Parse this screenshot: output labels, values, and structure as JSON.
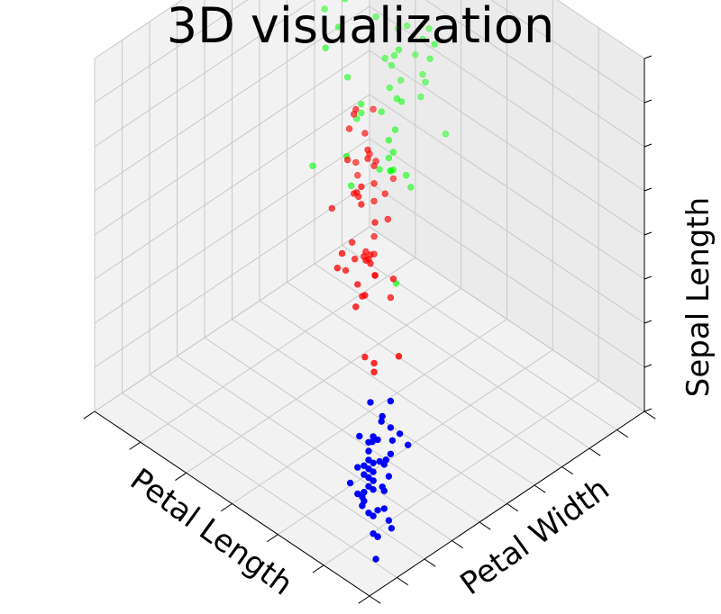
{
  "chart_data": {
    "type": "scatter",
    "title": "3D visualization",
    "xlabel": "Petal Length",
    "ylabel": "Petal Width",
    "zlabel": "Sepal Length",
    "grid": true,
    "xlim": [
      1,
      7
    ],
    "ylim": [
      0,
      2.5
    ],
    "zlim": [
      4,
      8
    ],
    "series": [
      {
        "color": "#0000ff",
        "points": [
          [
            1.4,
            0.2,
            5.1
          ],
          [
            1.4,
            0.2,
            4.9
          ],
          [
            1.3,
            0.2,
            4.7
          ],
          [
            1.5,
            0.2,
            4.6
          ],
          [
            1.4,
            0.2,
            5.0
          ],
          [
            1.7,
            0.4,
            5.4
          ],
          [
            1.4,
            0.3,
            4.6
          ],
          [
            1.5,
            0.2,
            5.0
          ],
          [
            1.4,
            0.2,
            4.4
          ],
          [
            1.5,
            0.1,
            4.9
          ],
          [
            1.5,
            0.2,
            5.4
          ],
          [
            1.6,
            0.2,
            4.8
          ],
          [
            1.4,
            0.1,
            4.8
          ],
          [
            1.1,
            0.1,
            4.3
          ],
          [
            1.2,
            0.2,
            5.8
          ],
          [
            1.5,
            0.4,
            5.7
          ],
          [
            1.3,
            0.4,
            5.4
          ],
          [
            1.4,
            0.3,
            5.1
          ],
          [
            1.7,
            0.3,
            5.7
          ],
          [
            1.5,
            0.3,
            5.1
          ],
          [
            1.7,
            0.2,
            5.4
          ],
          [
            1.5,
            0.4,
            5.1
          ],
          [
            1.0,
            0.2,
            4.6
          ],
          [
            1.7,
            0.5,
            5.1
          ],
          [
            1.9,
            0.2,
            4.8
          ],
          [
            1.6,
            0.2,
            5.0
          ],
          [
            1.6,
            0.4,
            5.0
          ],
          [
            1.5,
            0.2,
            5.2
          ],
          [
            1.4,
            0.2,
            5.2
          ],
          [
            1.6,
            0.2,
            4.7
          ],
          [
            1.6,
            0.2,
            4.8
          ],
          [
            1.5,
            0.4,
            5.4
          ],
          [
            1.5,
            0.1,
            5.2
          ],
          [
            1.4,
            0.2,
            5.5
          ],
          [
            1.5,
            0.2,
            4.9
          ],
          [
            1.2,
            0.2,
            5.0
          ],
          [
            1.3,
            0.2,
            5.5
          ],
          [
            1.4,
            0.1,
            4.9
          ],
          [
            1.3,
            0.2,
            4.4
          ],
          [
            1.5,
            0.2,
            5.1
          ],
          [
            1.3,
            0.3,
            5.0
          ],
          [
            1.3,
            0.3,
            4.5
          ],
          [
            1.3,
            0.2,
            4.4
          ],
          [
            1.6,
            0.6,
            5.0
          ],
          [
            1.9,
            0.4,
            5.1
          ],
          [
            1.4,
            0.3,
            4.8
          ],
          [
            1.6,
            0.2,
            5.1
          ],
          [
            1.4,
            0.2,
            4.6
          ],
          [
            1.5,
            0.2,
            5.3
          ],
          [
            1.4,
            0.2,
            5.0
          ]
        ]
      },
      {
        "color": "#ff0000",
        "points": [
          [
            4.7,
            1.4,
            7.0
          ],
          [
            4.5,
            1.5,
            6.4
          ],
          [
            4.9,
            1.5,
            6.9
          ],
          [
            4.0,
            1.3,
            5.5
          ],
          [
            4.6,
            1.5,
            6.5
          ],
          [
            4.5,
            1.3,
            5.7
          ],
          [
            4.7,
            1.6,
            6.3
          ],
          [
            3.3,
            1.0,
            4.9
          ],
          [
            4.6,
            1.3,
            6.6
          ],
          [
            3.9,
            1.4,
            5.2
          ],
          [
            3.5,
            1.0,
            5.0
          ],
          [
            4.2,
            1.5,
            5.9
          ],
          [
            4.0,
            1.0,
            6.0
          ],
          [
            4.7,
            1.4,
            6.1
          ],
          [
            3.6,
            1.3,
            5.6
          ],
          [
            4.4,
            1.4,
            6.7
          ],
          [
            4.5,
            1.5,
            5.6
          ],
          [
            4.1,
            1.0,
            5.8
          ],
          [
            4.5,
            1.5,
            6.2
          ],
          [
            3.9,
            1.1,
            5.6
          ],
          [
            4.8,
            1.8,
            5.9
          ],
          [
            4.0,
            1.3,
            6.1
          ],
          [
            4.9,
            1.5,
            6.3
          ],
          [
            4.7,
            1.2,
            6.1
          ],
          [
            4.3,
            1.3,
            6.4
          ],
          [
            4.4,
            1.4,
            6.6
          ],
          [
            4.8,
            1.4,
            6.8
          ],
          [
            5.0,
            1.7,
            6.7
          ],
          [
            4.5,
            1.5,
            6.0
          ],
          [
            3.5,
            1.0,
            5.7
          ],
          [
            3.8,
            1.1,
            5.5
          ],
          [
            3.7,
            1.0,
            5.5
          ],
          [
            3.9,
            1.2,
            5.8
          ],
          [
            5.1,
            1.6,
            6.0
          ],
          [
            4.5,
            1.5,
            5.4
          ],
          [
            4.5,
            1.6,
            6.0
          ],
          [
            4.7,
            1.5,
            6.7
          ],
          [
            4.4,
            1.3,
            6.3
          ],
          [
            4.1,
            1.3,
            5.6
          ],
          [
            4.0,
            1.3,
            5.5
          ],
          [
            4.4,
            1.2,
            5.5
          ],
          [
            4.6,
            1.4,
            6.1
          ],
          [
            4.0,
            1.2,
            5.8
          ],
          [
            3.3,
            1.0,
            5.0
          ],
          [
            4.2,
            1.3,
            5.6
          ],
          [
            4.2,
            1.2,
            5.7
          ],
          [
            4.2,
            1.3,
            5.7
          ],
          [
            4.3,
            1.3,
            6.2
          ],
          [
            3.0,
            1.1,
            5.1
          ],
          [
            4.1,
            1.3,
            5.7
          ]
        ]
      },
      {
        "color": "#00ff00",
        "points": [
          [
            6.0,
            2.5,
            6.3
          ],
          [
            5.1,
            1.9,
            5.8
          ],
          [
            5.9,
            2.1,
            7.1
          ],
          [
            5.6,
            1.8,
            6.3
          ],
          [
            5.8,
            2.2,
            6.5
          ],
          [
            6.6,
            2.1,
            7.6
          ],
          [
            4.5,
            1.7,
            4.9
          ],
          [
            6.3,
            1.8,
            7.3
          ],
          [
            5.8,
            1.8,
            6.7
          ],
          [
            6.1,
            2.5,
            7.2
          ],
          [
            5.1,
            2.0,
            6.5
          ],
          [
            5.3,
            1.9,
            6.4
          ],
          [
            5.5,
            2.1,
            6.8
          ],
          [
            5.0,
            2.0,
            5.7
          ],
          [
            5.1,
            2.4,
            5.8
          ],
          [
            5.3,
            2.3,
            6.4
          ],
          [
            5.5,
            1.8,
            6.5
          ],
          [
            6.7,
            2.2,
            7.7
          ],
          [
            6.9,
            2.3,
            7.7
          ],
          [
            5.0,
            1.5,
            6.0
          ],
          [
            5.7,
            2.3,
            6.9
          ],
          [
            4.9,
            2.0,
            5.6
          ],
          [
            6.7,
            2.0,
            7.7
          ],
          [
            4.9,
            1.8,
            6.3
          ],
          [
            5.7,
            2.1,
            6.7
          ],
          [
            6.0,
            1.8,
            7.2
          ],
          [
            4.8,
            1.8,
            6.2
          ],
          [
            4.9,
            1.8,
            6.1
          ],
          [
            5.6,
            2.1,
            6.4
          ],
          [
            5.8,
            1.6,
            7.2
          ],
          [
            6.1,
            1.9,
            7.4
          ],
          [
            6.4,
            2.0,
            7.9
          ],
          [
            5.6,
            2.2,
            6.4
          ],
          [
            5.1,
            1.5,
            6.3
          ],
          [
            5.6,
            1.4,
            6.1
          ],
          [
            6.1,
            2.3,
            7.7
          ],
          [
            5.6,
            2.4,
            6.3
          ],
          [
            5.5,
            1.8,
            6.4
          ],
          [
            4.8,
            1.8,
            6.0
          ],
          [
            5.4,
            2.1,
            6.9
          ],
          [
            5.6,
            2.4,
            6.7
          ],
          [
            5.1,
            2.3,
            6.9
          ],
          [
            5.1,
            1.9,
            5.8
          ],
          [
            5.9,
            2.3,
            6.8
          ],
          [
            5.7,
            2.5,
            6.7
          ],
          [
            5.2,
            2.3,
            6.7
          ],
          [
            5.0,
            1.9,
            6.3
          ],
          [
            5.2,
            2.0,
            6.5
          ],
          [
            5.4,
            2.3,
            6.2
          ],
          [
            5.1,
            1.8,
            5.9
          ]
        ]
      }
    ]
  }
}
